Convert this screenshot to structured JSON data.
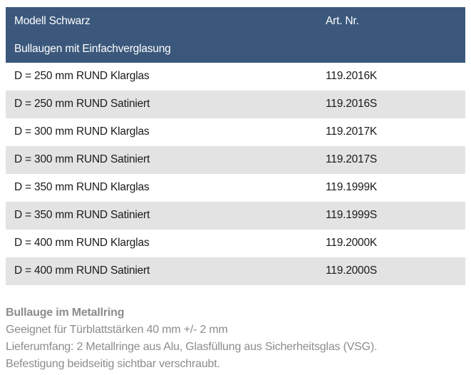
{
  "table": {
    "header": {
      "model": "Modell Schwarz",
      "art_nr": "Art. Nr.",
      "subtitle": "Bullaugen mit Einfachverglasung"
    },
    "rows": [
      {
        "desc": "D = 250 mm RUND Klarglas",
        "nr": "119.2016K"
      },
      {
        "desc": "D = 250 mm RUND Satiniert",
        "nr": "119.2016S"
      },
      {
        "desc": "D = 300 mm RUND Klarglas",
        "nr": "119.2017K"
      },
      {
        "desc": "D = 300 mm RUND Satiniert",
        "nr": "119.2017S"
      },
      {
        "desc": "D = 350 mm RUND Klarglas",
        "nr": "119.1999K"
      },
      {
        "desc": "D = 350 mm RUND Satiniert",
        "nr": "119.1999S"
      },
      {
        "desc": "D = 400 mm RUND Klarglas",
        "nr": "119.2000K"
      },
      {
        "desc": "D = 400 mm RUND Satiniert",
        "nr": "119.2000S"
      }
    ]
  },
  "notes": {
    "title": "Bullauge im Metallring",
    "line1": "Geeignet für Türblattstärken 40 mm +/- 2 mm",
    "line2": "Lieferumfang: 2 Metallringe aus Alu, Glasfüllung aus Sicherheitsglas (VSG).",
    "line3": "Befestigung beidseitig sichtbar verschraubt."
  },
  "colors": {
    "header_bg": "#3b587c",
    "row_alt_bg": "#e3e3e3",
    "note_text": "#8c8c8c"
  }
}
